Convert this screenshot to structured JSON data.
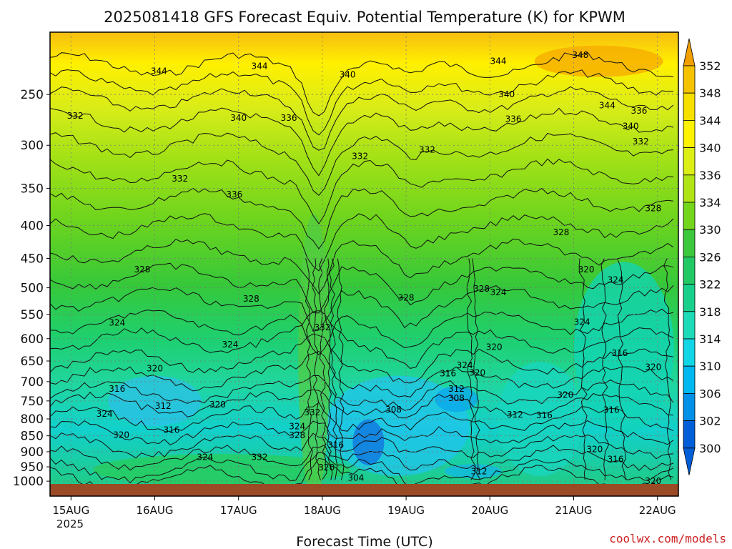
{
  "chart_data": {
    "type": "heatmap",
    "title": "2025081418 GFS Forecast Equiv. Potential Temperature (K) for KPWM",
    "xlabel": "Forecast Time (UTC)",
    "ylabel": "",
    "x_ticks": [
      "15AUG",
      "16AUG",
      "17AUG",
      "18AUG",
      "19AUG",
      "20AUG",
      "21AUG",
      "22AUG"
    ],
    "x_year_label": "2025",
    "y_ticks": [
      "250",
      "300",
      "350",
      "400",
      "450",
      "500",
      "550",
      "600",
      "650",
      "700",
      "750",
      "800",
      "850",
      "900",
      "950",
      "1000"
    ],
    "y_range": [
      200,
      1010
    ],
    "x_range_days": [
      14.75,
      22.25
    ],
    "colorbar": {
      "labels": [
        352,
        348,
        344,
        340,
        336,
        334,
        330,
        326,
        322,
        318,
        314,
        310,
        306,
        302,
        300
      ],
      "colors": [
        "#f2a000",
        "#f5c200",
        "#f7e000",
        "#fff200",
        "#dcef14",
        "#b0e414",
        "#74d61c",
        "#3cc83c",
        "#22c864",
        "#18d08c",
        "#1cdcb8",
        "#10d6e6",
        "#00b8f0",
        "#0090e8",
        "#005fd8"
      ]
    },
    "contour_labels": [
      {
        "v": "344",
        "d": 16.05,
        "p": 230
      },
      {
        "v": "344",
        "d": 17.25,
        "p": 226
      },
      {
        "v": "340",
        "d": 18.3,
        "p": 233
      },
      {
        "v": "344",
        "d": 20.1,
        "p": 222
      },
      {
        "v": "348",
        "d": 21.08,
        "p": 217
      },
      {
        "v": "340",
        "d": 20.2,
        "p": 250
      },
      {
        "v": "336",
        "d": 20.28,
        "p": 273
      },
      {
        "v": "344",
        "d": 21.4,
        "p": 260
      },
      {
        "v": "336",
        "d": 21.78,
        "p": 265
      },
      {
        "v": "340",
        "d": 21.68,
        "p": 280
      },
      {
        "v": "332",
        "d": 21.8,
        "p": 296
      },
      {
        "v": "332",
        "d": 15.05,
        "p": 270
      },
      {
        "v": "340",
        "d": 17.0,
        "p": 272
      },
      {
        "v": "336",
        "d": 17.6,
        "p": 272
      },
      {
        "v": "332",
        "d": 18.45,
        "p": 312
      },
      {
        "v": "332",
        "d": 19.25,
        "p": 305
      },
      {
        "v": "332",
        "d": 16.3,
        "p": 338
      },
      {
        "v": "336",
        "d": 16.95,
        "p": 358
      },
      {
        "v": "328",
        "d": 21.95,
        "p": 376
      },
      {
        "v": "328",
        "d": 20.85,
        "p": 410
      },
      {
        "v": "328",
        "d": 15.85,
        "p": 468
      },
      {
        "v": "320",
        "d": 21.15,
        "p": 468
      },
      {
        "v": "324",
        "d": 21.5,
        "p": 486
      },
      {
        "v": "328",
        "d": 17.15,
        "p": 520
      },
      {
        "v": "328",
        "d": 19.0,
        "p": 518
      },
      {
        "v": "328",
        "d": 19.9,
        "p": 502
      },
      {
        "v": "324",
        "d": 20.1,
        "p": 508
      },
      {
        "v": "324",
        "d": 15.55,
        "p": 567
      },
      {
        "v": "332",
        "d": 18.0,
        "p": 576
      },
      {
        "v": "324",
        "d": 21.1,
        "p": 565
      },
      {
        "v": "324",
        "d": 16.9,
        "p": 613
      },
      {
        "v": "320",
        "d": 20.05,
        "p": 618
      },
      {
        "v": "316",
        "d": 21.55,
        "p": 632
      },
      {
        "v": "324",
        "d": 19.7,
        "p": 660
      },
      {
        "v": "316",
        "d": 19.5,
        "p": 680
      },
      {
        "v": "320",
        "d": 19.85,
        "p": 678
      },
      {
        "v": "320",
        "d": 21.95,
        "p": 664
      },
      {
        "v": "320",
        "d": 16.0,
        "p": 668
      },
      {
        "v": "316",
        "d": 15.55,
        "p": 718
      },
      {
        "v": "312",
        "d": 19.6,
        "p": 718
      },
      {
        "v": "312",
        "d": 16.1,
        "p": 764
      },
      {
        "v": "308",
        "d": 19.6,
        "p": 743
      },
      {
        "v": "320",
        "d": 20.9,
        "p": 734
      },
      {
        "v": "320",
        "d": 16.75,
        "p": 760
      },
      {
        "v": "308",
        "d": 18.85,
        "p": 774
      },
      {
        "v": "324",
        "d": 15.4,
        "p": 786
      },
      {
        "v": "332",
        "d": 17.88,
        "p": 782
      },
      {
        "v": "312",
        "d": 20.3,
        "p": 788
      },
      {
        "v": "316",
        "d": 20.65,
        "p": 790
      },
      {
        "v": "316",
        "d": 21.45,
        "p": 775
      },
      {
        "v": "324",
        "d": 17.7,
        "p": 822
      },
      {
        "v": "316",
        "d": 16.2,
        "p": 832
      },
      {
        "v": "320",
        "d": 15.6,
        "p": 847
      },
      {
        "v": "328",
        "d": 17.7,
        "p": 848
      },
      {
        "v": "316",
        "d": 18.16,
        "p": 878
      },
      {
        "v": "320",
        "d": 21.25,
        "p": 892
      },
      {
        "v": "324",
        "d": 16.6,
        "p": 918
      },
      {
        "v": "332",
        "d": 17.25,
        "p": 918
      },
      {
        "v": "316",
        "d": 21.5,
        "p": 925
      },
      {
        "v": "320",
        "d": 18.05,
        "p": 952
      },
      {
        "v": "312",
        "d": 19.87,
        "p": 966
      },
      {
        "v": "304",
        "d": 18.4,
        "p": 988
      },
      {
        "v": "320",
        "d": 21.95,
        "p": 1000
      }
    ]
  },
  "credit": "coolwx.com/models"
}
